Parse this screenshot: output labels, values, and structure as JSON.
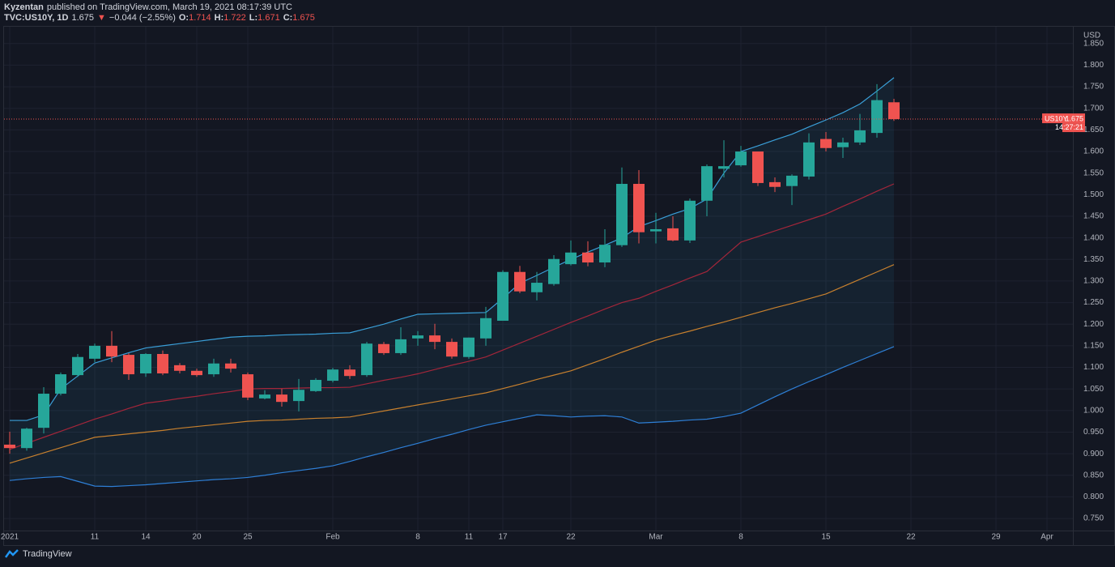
{
  "header": {
    "author": "Kyzentan",
    "published": "published on TradingView.com, March 19, 2021 08:17:39 UTC",
    "symbol": "TVC:US10Y, 1D",
    "last": "1.675",
    "arrow": "▼",
    "change": "−0.044 (−2.55%)",
    "ohlc": [
      {
        "label": "O:",
        "value": "1.714"
      },
      {
        "label": "H:",
        "value": "1.722"
      },
      {
        "label": "L:",
        "value": "1.671"
      },
      {
        "label": "C:",
        "value": "1.675"
      }
    ]
  },
  "footer": {
    "brand": "TradingView"
  },
  "chart_data": {
    "type": "candlestick",
    "currency": "USD",
    "price_tag": {
      "symbol": "US10Y",
      "value": "1.675",
      "countdown": "14:27:21"
    },
    "up_color": "#26a69a",
    "down_color": "#ef5350",
    "grid": true,
    "ylim": [
      0.722,
      1.889
    ],
    "yticks": [
      {
        "value": 0.75,
        "label": "0.750"
      },
      {
        "value": 0.8,
        "label": "0.800"
      },
      {
        "value": 0.85,
        "label": "0.850"
      },
      {
        "value": 0.9,
        "label": "0.900"
      },
      {
        "value": 0.95,
        "label": "0.950"
      },
      {
        "value": 1.0,
        "label": "1.000"
      },
      {
        "value": 1.05,
        "label": "1.050"
      },
      {
        "value": 1.1,
        "label": "1.100"
      },
      {
        "value": 1.15,
        "label": "1.150"
      },
      {
        "value": 1.2,
        "label": "1.200"
      },
      {
        "value": 1.25,
        "label": "1.250"
      },
      {
        "value": 1.3,
        "label": "1.300"
      },
      {
        "value": 1.35,
        "label": "1.350"
      },
      {
        "value": 1.4,
        "label": "1.400"
      },
      {
        "value": 1.45,
        "label": "1.450"
      },
      {
        "value": 1.5,
        "label": "1.500"
      },
      {
        "value": 1.55,
        "label": "1.550"
      },
      {
        "value": 1.6,
        "label": "1.600"
      },
      {
        "value": 1.65,
        "label": "1.650"
      },
      {
        "value": 1.7,
        "label": "1.700"
      },
      {
        "value": 1.75,
        "label": "1.750"
      },
      {
        "value": 1.8,
        "label": "1.800"
      },
      {
        "value": 1.85,
        "label": "1.850"
      }
    ],
    "categories": [
      "2021",
      null,
      null,
      null,
      null,
      "11",
      null,
      null,
      "14",
      null,
      null,
      "20",
      null,
      null,
      "25",
      null,
      null,
      null,
      null,
      "Feb",
      null,
      null,
      null,
      null,
      "8",
      null,
      null,
      "11",
      null,
      "17",
      null,
      null,
      null,
      "22",
      null,
      null,
      null,
      null,
      "Mar",
      null,
      null,
      null,
      null,
      "8",
      null,
      null,
      null,
      null,
      "15",
      null,
      null,
      null,
      null,
      "22",
      null,
      null,
      null,
      null,
      "29",
      null,
      null,
      "Apr"
    ],
    "open": [
      0.921,
      0.913,
      0.96,
      1.039,
      1.082,
      1.12,
      1.15,
      1.129,
      1.086,
      1.131,
      1.105,
      1.092,
      1.084,
      1.109,
      1.084,
      1.028,
      1.037,
      1.022,
      1.045,
      1.069,
      1.095,
      1.082,
      1.154,
      1.133,
      1.167,
      1.174,
      1.159,
      1.124,
      1.167,
      1.208,
      1.321,
      1.274,
      1.293,
      1.339,
      1.366,
      1.343,
      1.383,
      1.525,
      1.415,
      1.422,
      1.394,
      1.486,
      1.56,
      1.568,
      1.6,
      1.529,
      1.52,
      1.542,
      1.629,
      1.61,
      1.621,
      1.643,
      1.714,
      null,
      null,
      null,
      null,
      null,
      null,
      null,
      null,
      null
    ],
    "high": [
      0.951,
      0.96,
      1.054,
      1.088,
      1.131,
      1.155,
      1.184,
      1.133,
      1.133,
      1.139,
      1.11,
      1.097,
      1.12,
      1.12,
      1.088,
      1.047,
      1.05,
      1.073,
      1.075,
      1.099,
      1.105,
      1.159,
      1.159,
      1.193,
      1.184,
      1.201,
      1.167,
      1.169,
      1.24,
      1.325,
      1.335,
      1.321,
      1.36,
      1.394,
      1.392,
      1.42,
      1.563,
      1.557,
      1.458,
      1.45,
      1.491,
      1.57,
      1.626,
      1.613,
      1.6,
      1.54,
      1.547,
      1.642,
      1.645,
      1.632,
      1.687,
      1.756,
      1.722,
      null,
      null,
      null,
      null,
      null,
      null,
      null,
      null,
      null
    ],
    "low": [
      0.9,
      0.907,
      0.947,
      1.035,
      1.078,
      1.112,
      1.112,
      1.071,
      1.078,
      1.082,
      1.086,
      1.078,
      1.078,
      1.088,
      1.024,
      1.026,
      1.009,
      0.998,
      1.043,
      1.065,
      1.073,
      1.078,
      1.129,
      1.129,
      1.15,
      1.142,
      1.12,
      1.12,
      1.15,
      1.208,
      1.272,
      1.255,
      1.289,
      1.336,
      1.334,
      1.332,
      1.379,
      1.387,
      1.387,
      1.392,
      1.388,
      1.45,
      1.54,
      1.565,
      1.52,
      1.506,
      1.476,
      1.535,
      1.6,
      1.585,
      1.615,
      1.632,
      1.671,
      null,
      null,
      null,
      null,
      null,
      null,
      null,
      null,
      null
    ],
    "close": [
      0.913,
      0.958,
      1.039,
      1.084,
      1.124,
      1.15,
      1.125,
      1.084,
      1.131,
      1.086,
      1.092,
      1.082,
      1.109,
      1.097,
      1.03,
      1.037,
      1.02,
      1.048,
      1.071,
      1.095,
      1.08,
      1.155,
      1.133,
      1.165,
      1.174,
      1.159,
      1.125,
      1.169,
      1.214,
      1.321,
      1.276,
      1.296,
      1.351,
      1.366,
      1.343,
      1.384,
      1.525,
      1.413,
      1.42,
      1.394,
      1.486,
      1.566,
      1.566,
      1.6,
      1.527,
      1.518,
      1.544,
      1.621,
      1.608,
      1.621,
      1.649,
      1.719,
      1.675,
      null,
      null,
      null,
      null,
      null,
      null,
      null,
      null,
      null
    ],
    "band_fill": "rgba(41,160,200,0.09)",
    "lines": [
      {
        "color": "#3a9fd8",
        "values": [
          0.977,
          0.977,
          0.99,
          1.05,
          1.08,
          1.11,
          1.122,
          1.134,
          1.145,
          1.15,
          1.155,
          1.16,
          1.165,
          1.17,
          1.172,
          1.173,
          1.175,
          1.176,
          1.177,
          1.179,
          1.18,
          1.19,
          1.2,
          1.212,
          1.223,
          1.224,
          1.225,
          1.226,
          1.227,
          1.26,
          1.295,
          1.313,
          1.332,
          1.35,
          1.367,
          1.383,
          1.4,
          1.426,
          1.44,
          1.455,
          1.468,
          1.49,
          1.55,
          1.6,
          1.613,
          1.627,
          1.64,
          1.657,
          1.673,
          1.69,
          1.71,
          1.74,
          1.771,
          null,
          null,
          null,
          null,
          null,
          null,
          null,
          null,
          null
        ]
      },
      {
        "color": "#2e7fd6",
        "values": [
          0.838,
          0.842,
          0.845,
          0.847,
          0.836,
          0.825,
          0.824,
          0.826,
          0.828,
          0.831,
          0.834,
          0.837,
          0.84,
          0.842,
          0.845,
          0.85,
          0.856,
          0.861,
          0.866,
          0.872,
          0.882,
          0.893,
          0.903,
          0.914,
          0.924,
          0.935,
          0.945,
          0.956,
          0.966,
          0.974,
          0.982,
          0.99,
          0.988,
          0.985,
          0.987,
          0.988,
          0.985,
          0.971,
          0.973,
          0.975,
          0.978,
          0.98,
          0.986,
          0.994,
          1.013,
          1.032,
          1.05,
          1.067,
          1.083,
          1.1,
          1.116,
          1.132,
          1.148,
          null,
          null,
          null,
          null,
          null,
          null,
          null,
          null,
          null
        ]
      },
      {
        "color": "#a3263a",
        "values": [
          0.91,
          0.924,
          0.938,
          0.952,
          0.966,
          0.98,
          0.992,
          1.005,
          1.017,
          1.022,
          1.028,
          1.033,
          1.039,
          1.044,
          1.05,
          1.051,
          1.051,
          1.052,
          1.053,
          1.053,
          1.054,
          1.062,
          1.07,
          1.077,
          1.085,
          1.095,
          1.105,
          1.114,
          1.124,
          1.14,
          1.156,
          1.172,
          1.188,
          1.204,
          1.219,
          1.235,
          1.25,
          1.26,
          1.276,
          1.291,
          1.307,
          1.322,
          1.356,
          1.39,
          1.403,
          1.416,
          1.429,
          1.442,
          1.455,
          1.473,
          1.49,
          1.508,
          1.525,
          null,
          null,
          null,
          null,
          null,
          null,
          null,
          null,
          null
        ]
      },
      {
        "color": "#c7802e",
        "values": [
          0.878,
          0.89,
          0.902,
          0.914,
          0.926,
          0.938,
          0.942,
          0.946,
          0.95,
          0.954,
          0.959,
          0.963,
          0.967,
          0.971,
          0.975,
          0.977,
          0.978,
          0.98,
          0.982,
          0.983,
          0.985,
          0.992,
          0.999,
          1.006,
          1.013,
          1.02,
          1.027,
          1.034,
          1.041,
          1.051,
          1.061,
          1.072,
          1.082,
          1.092,
          1.106,
          1.12,
          1.135,
          1.149,
          1.163,
          1.174,
          1.184,
          1.195,
          1.205,
          1.216,
          1.227,
          1.238,
          1.248,
          1.259,
          1.27,
          1.287,
          1.304,
          1.321,
          1.338,
          null,
          null,
          null,
          null,
          null,
          null,
          null,
          null,
          null
        ]
      }
    ]
  }
}
